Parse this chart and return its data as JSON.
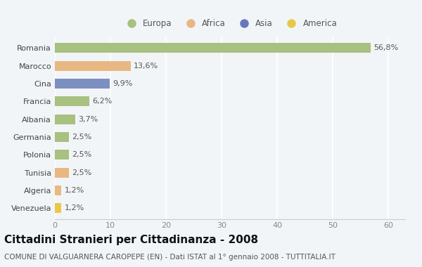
{
  "countries": [
    "Romania",
    "Marocco",
    "Cina",
    "Francia",
    "Albania",
    "Germania",
    "Polonia",
    "Tunisia",
    "Algeria",
    "Venezuela"
  ],
  "values": [
    56.8,
    13.6,
    9.9,
    6.2,
    3.7,
    2.5,
    2.5,
    2.5,
    1.2,
    1.2
  ],
  "labels": [
    "56,8%",
    "13,6%",
    "9,9%",
    "6,2%",
    "3,7%",
    "2,5%",
    "2,5%",
    "2,5%",
    "1,2%",
    "1,2%"
  ],
  "colors": [
    "#a8c080",
    "#e8b882",
    "#7b8fc0",
    "#a8c080",
    "#a8c080",
    "#a8c080",
    "#a8c080",
    "#e8b882",
    "#e8b882",
    "#e8c84a"
  ],
  "legend_labels": [
    "Europa",
    "Africa",
    "Asia",
    "America"
  ],
  "legend_colors": [
    "#a8c080",
    "#e8b882",
    "#6878b8",
    "#e8c84a"
  ],
  "xlim": [
    0,
    63
  ],
  "xticks": [
    0,
    10,
    20,
    30,
    40,
    50,
    60
  ],
  "title": "Cittadini Stranieri per Cittadinanza - 2008",
  "subtitle": "COMUNE DI VALGUARNERA CAROPEPE (EN) - Dati ISTAT al 1° gennaio 2008 - TUTTITALIA.IT",
  "bg_color": "#f2f5f8",
  "bar_height": 0.55,
  "title_fontsize": 11,
  "subtitle_fontsize": 7.5,
  "label_fontsize": 8,
  "tick_fontsize": 8,
  "legend_fontsize": 8.5
}
